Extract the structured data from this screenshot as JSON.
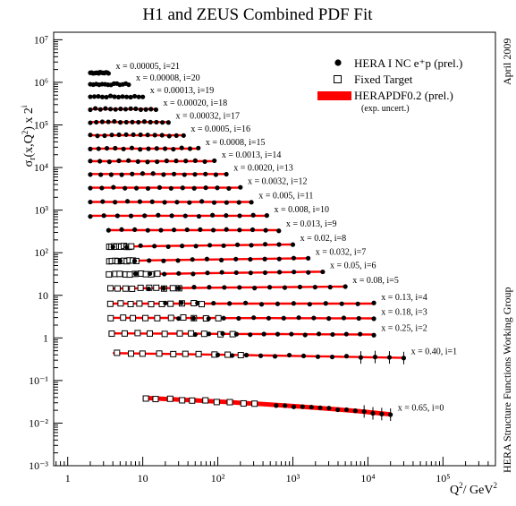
{
  "chart_data": {
    "type": "scatter",
    "title": "H1 and ZEUS Combined PDF Fit",
    "side_text_top": "April 2009",
    "side_text_bottom": "HERA Structure Functions Working Group",
    "xlabel": "Q²/ GeV²",
    "ylabel": "σr(x,Q²) x 2^i",
    "xscale": "log",
    "yscale": "log",
    "xlim": [
      0.65,
      500000
    ],
    "ylim": [
      0.001,
      15000000
    ],
    "x_ticks": [
      {
        "value": 1,
        "label": "1"
      },
      {
        "value": 10,
        "label": "10"
      },
      {
        "value": 100,
        "label": "10²"
      },
      {
        "value": 1000,
        "label": "10³"
      },
      {
        "value": 10000,
        "label": "10⁴"
      },
      {
        "value": 100000,
        "label": "10⁵"
      }
    ],
    "y_ticks": [
      {
        "value": 0.001,
        "label": "10⁻³"
      },
      {
        "value": 0.01,
        "label": "10⁻²"
      },
      {
        "value": 0.1,
        "label": "10⁻¹"
      },
      {
        "value": 1,
        "label": "1"
      },
      {
        "value": 10,
        "label": "10"
      },
      {
        "value": 100,
        "label": "10²"
      },
      {
        "value": 1000,
        "label": "10³"
      },
      {
        "value": 10000,
        "label": "10⁴"
      },
      {
        "value": 100000,
        "label": "10⁵"
      },
      {
        "value": 1000000,
        "label": "10⁶"
      },
      {
        "value": 10000000,
        "label": "10⁷"
      }
    ],
    "legend": {
      "position": "top-right",
      "entries": [
        {
          "label": "HERA I NC e⁺p (prel.)",
          "marker": "filled-circle"
        },
        {
          "label": "Fixed Target",
          "marker": "open-square"
        },
        {
          "label": "HERAPDF0.2 (prel.)",
          "marker": "red-band"
        },
        {
          "label": "(exp. uncert.)",
          "marker": "none"
        }
      ]
    },
    "colors": {
      "band": "#ff0000",
      "hera": "#000000",
      "fixed": "#000000"
    },
    "bins": [
      {
        "i": 21,
        "label": "x = 0.00005, i=21",
        "hera": {
          "q2_min": 2,
          "q2_max": 3.5,
          "sigma": 0.8
        }
      },
      {
        "i": 20,
        "label": "x = 0.00008, i=20",
        "hera": {
          "q2_min": 2,
          "q2_max": 6.5,
          "sigma": 0.86
        }
      },
      {
        "i": 19,
        "label": "x = 0.00013, i=19",
        "hera": {
          "q2_min": 2,
          "q2_max": 10,
          "sigma": 0.88
        }
      },
      {
        "i": 18,
        "label": "x = 0.00020, i=18",
        "hera": {
          "q2_min": 2,
          "q2_max": 15,
          "sigma": 0.9
        }
      },
      {
        "i": 17,
        "label": "x = 0.00032, i=17",
        "hera": {
          "q2_min": 2,
          "q2_max": 22,
          "sigma": 0.89
        }
      },
      {
        "i": 16,
        "label": "x = 0.0005, i=16",
        "hera": {
          "q2_min": 2,
          "q2_max": 35,
          "sigma": 0.87
        }
      },
      {
        "i": 15,
        "label": "x = 0.0008, i=15",
        "hera": {
          "q2_min": 2,
          "q2_max": 55,
          "sigma": 0.85
        }
      },
      {
        "i": 14,
        "label": "x = 0.0013, i=14",
        "hera": {
          "q2_min": 2,
          "q2_max": 90,
          "sigma": 0.86
        }
      },
      {
        "i": 13,
        "label": "x = 0.0020, i=13",
        "hera": {
          "q2_min": 2,
          "q2_max": 130,
          "sigma": 0.86
        }
      },
      {
        "i": 12,
        "label": "x = 0.0032, i=12",
        "hera": {
          "q2_min": 2,
          "q2_max": 200,
          "sigma": 0.82
        }
      },
      {
        "i": 11,
        "label": "x = 0.005, i=11",
        "hera": {
          "q2_min": 2,
          "q2_max": 280,
          "sigma": 0.76
        }
      },
      {
        "i": 10,
        "label": "x = 0.008, i=10",
        "hera": {
          "q2_min": 2,
          "q2_max": 450,
          "sigma": 0.72
        }
      },
      {
        "i": 9,
        "label": "x = 0.013, i=9",
        "hera": {
          "q2_min": 3.5,
          "q2_max": 650,
          "sigma": 0.66
        }
      },
      {
        "i": 8,
        "label": "x = 0.02, i=8",
        "hera": {
          "q2_min": 4,
          "q2_max": 1000,
          "sigma": 0.61
        },
        "fixed": {
          "q2_min": 3.5,
          "q2_max": 7,
          "sigma": 0.54
        }
      },
      {
        "i": 7,
        "label": "x = 0.032, i=7",
        "hera": {
          "q2_min": 5,
          "q2_max": 1600,
          "sigma": 0.58
        },
        "fixed": {
          "q2_min": 3.5,
          "q2_max": 8,
          "sigma": 0.5
        }
      },
      {
        "i": 6,
        "label": "x = 0.05, i=6",
        "hera": {
          "q2_min": 8,
          "q2_max": 2500,
          "sigma": 0.56
        },
        "fixed": {
          "q2_min": 3.5,
          "q2_max": 15,
          "sigma": 0.48
        }
      },
      {
        "i": 5,
        "label": "x = 0.08, i=5",
        "hera": {
          "q2_min": 12,
          "q2_max": 5000,
          "sigma": 0.5
        },
        "fixed": {
          "q2_min": 3.5,
          "q2_max": 30,
          "sigma": 0.45
        }
      },
      {
        "i": 4,
        "label": "x = 0.13, i=4",
        "hera": {
          "q2_min": 20,
          "q2_max": 12000,
          "sigma": 0.4
        },
        "fixed": {
          "q2_min": 3.5,
          "q2_max": 60,
          "sigma": 0.4
        }
      },
      {
        "i": 3,
        "label": "x = 0.18, i=3",
        "hera": {
          "q2_min": 30,
          "q2_max": 12000,
          "sigma": 0.36
        },
        "fixed": {
          "q2_min": 3.5,
          "q2_max": 100,
          "sigma": 0.37
        }
      },
      {
        "i": 2,
        "label": "x = 0.25, i=2",
        "hera": {
          "q2_min": 50,
          "q2_max": 12000,
          "sigma": 0.3
        },
        "fixed": {
          "q2_min": 3.5,
          "q2_max": 150,
          "sigma": 0.32
        }
      },
      {
        "i": 1,
        "label": "x = 0.40, i=1",
        "hera": {
          "q2_min": 100,
          "q2_max": 30000,
          "sigma": 0.17
        },
        "fixed": {
          "q2_min": 4,
          "q2_max": 200,
          "sigma": 0.22
        }
      },
      {
        "i": 0,
        "label": "x = 0.65, i=0",
        "hera": {
          "q2_min": 600,
          "q2_max": 20000,
          "sigma": 0.016
        },
        "fixed": {
          "q2_min": 10,
          "q2_max": 300,
          "sigma": 0.039
        }
      }
    ]
  }
}
